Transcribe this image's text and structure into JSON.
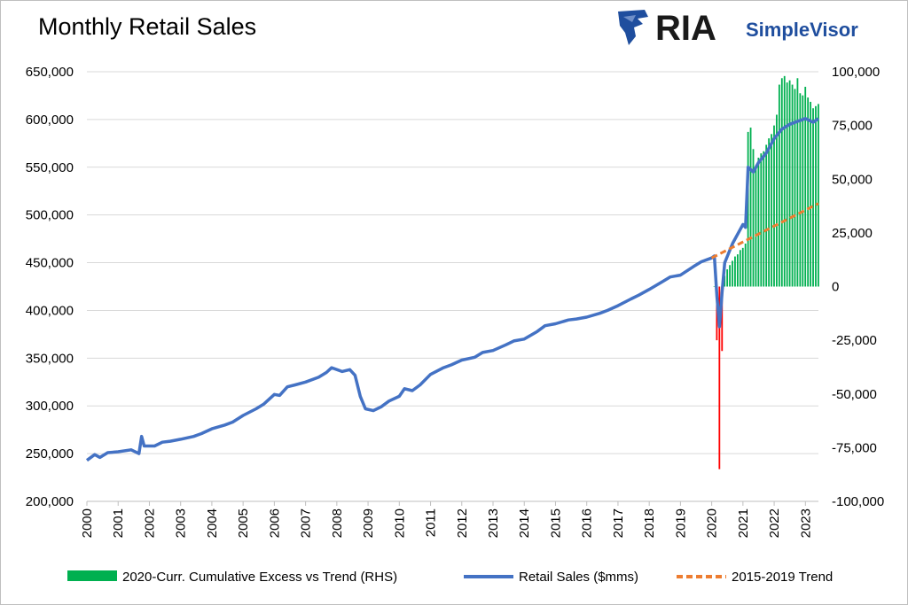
{
  "header": {
    "title": "Monthly Retail Sales",
    "logo_text": "RIA",
    "logo_subtext": "SimpleVisor",
    "logo_color": "#1f4e9e"
  },
  "chart_data": {
    "type": "line",
    "title": "Monthly Retail Sales",
    "x_range": [
      "2000-01",
      "2023-06"
    ],
    "x_tick_labels": [
      "2000",
      "2001",
      "2002",
      "2003",
      "2004",
      "2005",
      "2006",
      "2007",
      "2008",
      "2009",
      "2010",
      "2011",
      "2012",
      "2013",
      "2014",
      "2015",
      "2016",
      "2017",
      "2018",
      "2019",
      "2020",
      "2021",
      "2022",
      "2023"
    ],
    "y_left": {
      "range": [
        200000,
        650000
      ],
      "ticks": [
        "200,000",
        "250,000",
        "300,000",
        "350,000",
        "400,000",
        "450,000",
        "500,000",
        "550,000",
        "600,000",
        "650,000"
      ]
    },
    "y_right": {
      "range": [
        -100000,
        100000
      ],
      "ticks": [
        "-100,000",
        "-75,000",
        "-50,000",
        "-25,000",
        "0",
        "25,000",
        "50,000",
        "75,000",
        "100,000"
      ]
    },
    "grid": "horizontal",
    "legend_position": "bottom",
    "series": [
      {
        "name": "Retail Sales ($mms)",
        "axis": "left",
        "color": "#4472c4",
        "points": [
          [
            "2000-01",
            243000
          ],
          [
            "2000-04",
            249000
          ],
          [
            "2000-06",
            246000
          ],
          [
            "2000-09",
            251000
          ],
          [
            "2001-01",
            252000
          ],
          [
            "2001-06",
            254000
          ],
          [
            "2001-09",
            250000
          ],
          [
            "2001-10",
            268000
          ],
          [
            "2001-11",
            258000
          ],
          [
            "2002-03",
            258000
          ],
          [
            "2002-06",
            262000
          ],
          [
            "2002-09",
            263000
          ],
          [
            "2003-01",
            265000
          ],
          [
            "2003-06",
            268000
          ],
          [
            "2003-09",
            271000
          ],
          [
            "2004-01",
            276000
          ],
          [
            "2004-06",
            280000
          ],
          [
            "2004-09",
            283000
          ],
          [
            "2005-01",
            290000
          ],
          [
            "2005-06",
            297000
          ],
          [
            "2005-09",
            302000
          ],
          [
            "2006-01",
            312000
          ],
          [
            "2006-03",
            311000
          ],
          [
            "2006-06",
            320000
          ],
          [
            "2006-09",
            322000
          ],
          [
            "2007-01",
            325000
          ],
          [
            "2007-06",
            330000
          ],
          [
            "2007-09",
            335000
          ],
          [
            "2007-11",
            340000
          ],
          [
            "2008-03",
            336000
          ],
          [
            "2008-06",
            338000
          ],
          [
            "2008-08",
            332000
          ],
          [
            "2008-10",
            310000
          ],
          [
            "2008-12",
            297000
          ],
          [
            "2009-03",
            295000
          ],
          [
            "2009-06",
            299000
          ],
          [
            "2009-09",
            305000
          ],
          [
            "2010-01",
            310000
          ],
          [
            "2010-03",
            318000
          ],
          [
            "2010-06",
            316000
          ],
          [
            "2010-09",
            322000
          ],
          [
            "2011-01",
            333000
          ],
          [
            "2011-06",
            340000
          ],
          [
            "2011-09",
            343000
          ],
          [
            "2012-01",
            348000
          ],
          [
            "2012-06",
            351000
          ],
          [
            "2012-09",
            356000
          ],
          [
            "2013-01",
            358000
          ],
          [
            "2013-06",
            364000
          ],
          [
            "2013-09",
            368000
          ],
          [
            "2014-01",
            370000
          ],
          [
            "2014-06",
            378000
          ],
          [
            "2014-09",
            384000
          ],
          [
            "2015-01",
            386000
          ],
          [
            "2015-06",
            390000
          ],
          [
            "2015-09",
            391000
          ],
          [
            "2016-01",
            393000
          ],
          [
            "2016-06",
            397000
          ],
          [
            "2016-09",
            400000
          ],
          [
            "2017-01",
            405000
          ],
          [
            "2017-06",
            412000
          ],
          [
            "2017-09",
            416000
          ],
          [
            "2018-01",
            422000
          ],
          [
            "2018-06",
            430000
          ],
          [
            "2018-09",
            435000
          ],
          [
            "2019-01",
            437000
          ],
          [
            "2019-06",
            446000
          ],
          [
            "2019-09",
            451000
          ],
          [
            "2020-01",
            455000
          ],
          [
            "2020-02",
            457000
          ],
          [
            "2020-03",
            415000
          ],
          [
            "2020-04",
            383000
          ],
          [
            "2020-05",
            420000
          ],
          [
            "2020-06",
            450000
          ],
          [
            "2020-09",
            470000
          ],
          [
            "2020-12",
            485000
          ],
          [
            "2021-01",
            490000
          ],
          [
            "2021-02",
            487000
          ],
          [
            "2021-03",
            550000
          ],
          [
            "2021-05",
            545000
          ],
          [
            "2021-07",
            555000
          ],
          [
            "2021-10",
            565000
          ],
          [
            "2022-01",
            580000
          ],
          [
            "2022-04",
            590000
          ],
          [
            "2022-07",
            595000
          ],
          [
            "2022-10",
            598000
          ],
          [
            "2023-01",
            601000
          ],
          [
            "2023-04",
            597000
          ],
          [
            "2023-06",
            601000
          ]
        ]
      },
      {
        "name": "2015-2019 Trend",
        "axis": "left",
        "color": "#ed7d31",
        "style": "dashed",
        "points": [
          [
            "2020-01",
            455000
          ],
          [
            "2023-06",
            512000
          ]
        ]
      },
      {
        "name": "2020-Curr. Cumulative Excess vs Trend (RHS)",
        "axis": "right",
        "type": "bar",
        "color": "#00b050",
        "negative_color": "#ff0000",
        "points": [
          [
            "2020-02",
            0
          ],
          [
            "2020-03",
            -25000
          ],
          [
            "2020-04",
            -85000
          ],
          [
            "2020-05",
            -30000
          ],
          [
            "2020-06",
            5000
          ],
          [
            "2020-07",
            8000
          ],
          [
            "2020-08",
            10000
          ],
          [
            "2020-09",
            12000
          ],
          [
            "2020-10",
            14000
          ],
          [
            "2020-11",
            15000
          ],
          [
            "2020-12",
            17000
          ],
          [
            "2021-01",
            18000
          ],
          [
            "2021-02",
            20000
          ],
          [
            "2021-03",
            72000
          ],
          [
            "2021-04",
            74000
          ],
          [
            "2021-05",
            64000
          ],
          [
            "2021-06",
            56000
          ],
          [
            "2021-07",
            60000
          ],
          [
            "2021-08",
            62000
          ],
          [
            "2021-09",
            63000
          ],
          [
            "2021-10",
            66000
          ],
          [
            "2021-11",
            69000
          ],
          [
            "2021-12",
            71000
          ],
          [
            "2022-01",
            75000
          ],
          [
            "2022-02",
            80000
          ],
          [
            "2022-03",
            94000
          ],
          [
            "2022-04",
            97000
          ],
          [
            "2022-05",
            98000
          ],
          [
            "2022-06",
            95000
          ],
          [
            "2022-07",
            96000
          ],
          [
            "2022-08",
            94000
          ],
          [
            "2022-09",
            92000
          ],
          [
            "2022-10",
            97000
          ],
          [
            "2022-11",
            90000
          ],
          [
            "2022-12",
            89000
          ],
          [
            "2023-01",
            93000
          ],
          [
            "2023-02",
            88000
          ],
          [
            "2023-03",
            86000
          ],
          [
            "2023-04",
            83000
          ],
          [
            "2023-05",
            84000
          ],
          [
            "2023-06",
            85000
          ]
        ]
      }
    ]
  }
}
